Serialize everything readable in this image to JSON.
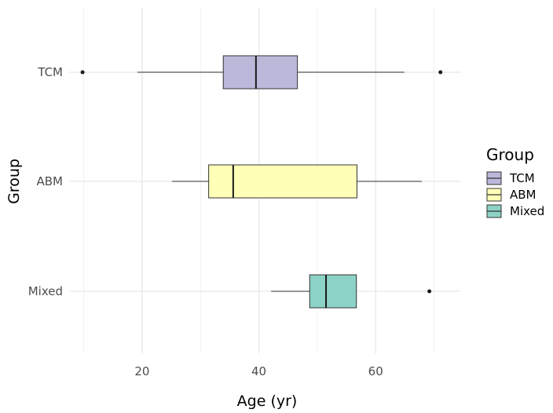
{
  "chart_data": {
    "type": "boxplot",
    "orientation": "horizontal",
    "title": "",
    "xlabel": "Age (yr)",
    "ylabel": "Group",
    "xlim": [
      7.5,
      74.5
    ],
    "xticks": [
      20,
      40,
      60
    ],
    "grid": true,
    "legend": {
      "title": "Group",
      "placement": "right",
      "entries": [
        "TCM",
        "ABM",
        "Mixed"
      ]
    },
    "categories": [
      "TCM",
      "ABM",
      "Mixed"
    ],
    "series": [
      {
        "name": "TCM",
        "color": "#bcb8da",
        "whisker_low": 19.2,
        "q1": 33.9,
        "median": 39.5,
        "q3": 46.6,
        "whisker_high": 64.9,
        "outliers": [
          9.8,
          71.1
        ]
      },
      {
        "name": "ABM",
        "color": "#ffffb7",
        "whisker_low": 25.1,
        "q1": 31.4,
        "median": 35.6,
        "q3": 56.8,
        "whisker_high": 67.9,
        "outliers": []
      },
      {
        "name": "Mixed",
        "color": "#8dd2c6",
        "whisker_low": 42.1,
        "q1": 48.7,
        "median": 51.5,
        "q3": 56.7,
        "whisker_high": 56.7,
        "outliers": [
          69.2
        ]
      }
    ]
  }
}
